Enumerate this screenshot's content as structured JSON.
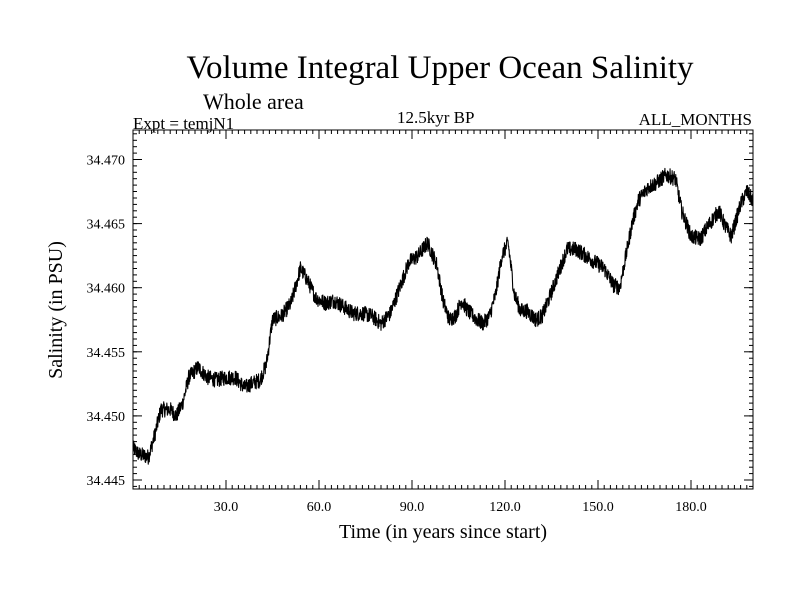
{
  "chart_data": {
    "type": "line",
    "title": "Volume Integral Upper Ocean Salinity",
    "subtitle": "Whole area",
    "experiment_label": "Expt = temjN1",
    "period_label": "12.5kyr BP",
    "months_label": "ALL_MONTHS",
    "xlabel": "Time (in years since start)",
    "ylabel": "Salinity (in PSU)",
    "xlim": [
      0,
      200
    ],
    "ylim": [
      34.4443,
      34.4723
    ],
    "x_ticks": [
      30,
      60,
      90,
      120,
      150,
      180
    ],
    "x_tick_labels": [
      "30.0",
      "60.0",
      "90.0",
      "120.0",
      "150.0",
      "180.0"
    ],
    "y_ticks": [
      34.445,
      34.45,
      34.455,
      34.46,
      34.465,
      34.47
    ],
    "y_tick_labels": [
      "34.445",
      "34.450",
      "34.455",
      "34.460",
      "34.465",
      "34.470"
    ],
    "line_color": "#000000",
    "noise_amplitude": 0.0012,
    "series": [
      {
        "name": "Salinity",
        "x": [
          0,
          2,
          5,
          7,
          9,
          12,
          14,
          16,
          18,
          21,
          24,
          27,
          30,
          33,
          36,
          38,
          41,
          43,
          45,
          48,
          51,
          54,
          56,
          59,
          62,
          65,
          68,
          71,
          74,
          77,
          80,
          83,
          86,
          89,
          92,
          95,
          98,
          100,
          102,
          104,
          106,
          108,
          111,
          113,
          115,
          117,
          119,
          121,
          123,
          125,
          127,
          130,
          132,
          134,
          137,
          140,
          143,
          146,
          149,
          152,
          155,
          157,
          159,
          161,
          163,
          166,
          169,
          172,
          175,
          177,
          180,
          183,
          186,
          189,
          191,
          193,
          196,
          198,
          200
        ],
        "values": [
          34.4475,
          34.447,
          34.4468,
          34.4485,
          34.4505,
          34.4505,
          34.45,
          34.451,
          34.453,
          34.4538,
          34.453,
          34.4528,
          34.453,
          34.453,
          34.4522,
          34.4525,
          34.4528,
          34.454,
          34.4575,
          34.4578,
          34.4588,
          34.4615,
          34.4607,
          34.4592,
          34.4588,
          34.459,
          34.4585,
          34.458,
          34.458,
          34.4578,
          34.4572,
          34.458,
          34.46,
          34.462,
          34.4625,
          34.4635,
          34.4618,
          34.459,
          34.4575,
          34.4578,
          34.459,
          34.4582,
          34.4575,
          34.4572,
          34.4578,
          34.4595,
          34.4625,
          34.4635,
          34.4595,
          34.4582,
          34.4582,
          34.4575,
          34.4578,
          34.459,
          34.461,
          34.463,
          34.463,
          34.4625,
          34.462,
          34.4615,
          34.4602,
          34.46,
          34.4625,
          34.465,
          34.4668,
          34.4678,
          34.4682,
          34.4688,
          34.4685,
          34.466,
          34.464,
          34.4638,
          34.465,
          34.466,
          34.4648,
          34.464,
          34.4665,
          34.4675,
          34.4668
        ]
      }
    ]
  }
}
